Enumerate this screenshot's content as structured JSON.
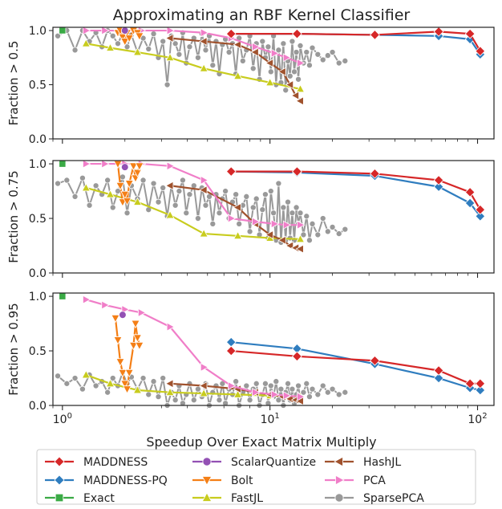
{
  "title": "Approximating an RBF Kernel Classifier",
  "xlabel": "Speedup Over Exact Matrix Multiply",
  "x_tick_labels": [
    "10^0",
    "10^1",
    "10^2"
  ],
  "legend_ncol": 3,
  "colors": {
    "MADDNESS": "#d62728",
    "MADDNESS-PQ": "#2f7dbf",
    "Exact": "#3aaa45",
    "ScalarQuantize": "#9351b4",
    "Bolt": "#f47f16",
    "FastJL": "#c8cc1e",
    "HashJL": "#a0522d",
    "PCA": "#f07ec8",
    "SparsePCA": "#999999"
  },
  "chart_data": [
    {
      "type": "line",
      "ylabel": "Fraction > 0.5",
      "xscale": "log",
      "xlim": [
        0.9,
        120
      ],
      "ylim": [
        0,
        1.03
      ],
      "y_ticks": [
        0.0,
        0.5,
        1.0
      ],
      "y_tick_labels": [
        "0.0",
        "0.5",
        "1.0"
      ],
      "series": [
        {
          "name": "MADDNESS",
          "marker": "diamond",
          "x": [
            6.5,
            13.5,
            32,
            65,
            92,
            103
          ],
          "y": [
            0.97,
            0.97,
            0.96,
            0.99,
            0.97,
            0.81
          ]
        },
        {
          "name": "MADDNESS-PQ",
          "marker": "diamond",
          "x": [
            6.5,
            13.5,
            32,
            65,
            92,
            103
          ],
          "y": [
            0.97,
            0.97,
            0.96,
            0.95,
            0.92,
            0.78
          ]
        },
        {
          "name": "Exact",
          "marker": "square",
          "x": [
            1.0
          ],
          "y": [
            1.0
          ]
        },
        {
          "name": "ScalarQuantize",
          "marker": "circle",
          "x": [
            2.0
          ],
          "y": [
            1.0
          ]
        },
        {
          "name": "Bolt",
          "marker": "triangle-down",
          "x": [
            1.85,
            1.9,
            1.95,
            2.0,
            2.05,
            2.1,
            2.2,
            2.3,
            2.35
          ],
          "y": [
            0.98,
            1.0,
            0.94,
            0.9,
            0.98,
            0.93,
            1.0,
            0.98,
            0.95
          ]
        },
        {
          "name": "FastJL",
          "marker": "triangle-up",
          "x": [
            1.3,
            1.7,
            2.3,
            3.3,
            4.8,
            7,
            10,
            14
          ],
          "y": [
            0.88,
            0.84,
            0.8,
            0.75,
            0.65,
            0.58,
            0.52,
            0.46
          ]
        },
        {
          "name": "HashJL",
          "marker": "triangle-left",
          "x": [
            3.3,
            4.8,
            7,
            8.5,
            10,
            11.5,
            12.5,
            13.3,
            14
          ],
          "y": [
            0.93,
            0.9,
            0.87,
            0.8,
            0.7,
            0.62,
            0.5,
            0.4,
            0.35
          ]
        },
        {
          "name": "PCA",
          "marker": "triangle-right",
          "x": [
            1.3,
            1.6,
            2.0,
            2.4,
            3.3,
            4.8,
            6.5,
            8.5,
            10.5,
            12,
            14
          ],
          "y": [
            1.0,
            1.0,
            1.0,
            1.0,
            1.0,
            0.98,
            0.93,
            0.85,
            0.79,
            0.75,
            0.7
          ]
        },
        {
          "name": "SparsePCA",
          "marker": "circle",
          "x": [
            0.95,
            1.05,
            1.15,
            1.25,
            1.35,
            1.45,
            1.55,
            1.65,
            1.75,
            1.85,
            1.95,
            2.05,
            2.15,
            2.3,
            2.45,
            2.6,
            2.75,
            2.9,
            3.05,
            3.2,
            3.35,
            3.5,
            3.65,
            3.8,
            3.95,
            4.1,
            4.3,
            4.5,
            4.7,
            4.9,
            5.1,
            5.3,
            5.5,
            5.7,
            5.9,
            6.1,
            6.35,
            6.6,
            6.85,
            7.1,
            7.4,
            7.7,
            8.0,
            8.3,
            8.6,
            8.9,
            9.2,
            9.5,
            9.8,
            10.1,
            10.4,
            10.7,
            11.0,
            11.3,
            11.6,
            11.9,
            12.2,
            12.5,
            12.8,
            13.1,
            13.4,
            13.7,
            14.0,
            14.5,
            15.0,
            15.5,
            16.0,
            17.0,
            18.0,
            19.0,
            20.0,
            21.5,
            23.0
          ],
          "y": [
            0.95,
            1.0,
            0.82,
            1.0,
            0.9,
            0.98,
            0.85,
            1.0,
            0.95,
            0.88,
            0.97,
            0.85,
            0.96,
            0.8,
            0.93,
            0.83,
            0.97,
            0.75,
            0.9,
            0.5,
            0.95,
            0.88,
            0.78,
            0.98,
            0.7,
            0.85,
            0.93,
            0.75,
            0.97,
            0.82,
            0.95,
            0.68,
            0.9,
            0.6,
            0.87,
            0.92,
            0.8,
            0.88,
            0.6,
            0.93,
            0.72,
            0.82,
            0.95,
            0.65,
            0.88,
            0.55,
            0.9,
            0.75,
            0.85,
            0.62,
            0.95,
            0.5,
            0.82,
            0.52,
            0.88,
            0.45,
            0.72,
            0.58,
            0.9,
            0.62,
            0.8,
            0.55,
            0.86,
            0.7,
            0.8,
            0.68,
            0.84,
            0.78,
            0.73,
            0.77,
            0.8,
            0.7,
            0.72
          ]
        }
      ]
    },
    {
      "type": "line",
      "ylabel": "Fraction > 0.75",
      "xscale": "log",
      "xlim": [
        0.9,
        120
      ],
      "ylim": [
        0,
        1.03
      ],
      "y_ticks": [
        0.0,
        0.5,
        1.0
      ],
      "y_tick_labels": [
        "0.0",
        "0.5",
        "1.0"
      ],
      "series": [
        {
          "name": "MADDNESS",
          "marker": "diamond",
          "x": [
            6.5,
            13.5,
            32,
            65,
            92,
            103
          ],
          "y": [
            0.93,
            0.93,
            0.91,
            0.85,
            0.74,
            0.58
          ]
        },
        {
          "name": "MADDNESS-PQ",
          "marker": "diamond",
          "x": [
            6.5,
            13.5,
            32,
            65,
            92,
            103
          ],
          "y": [
            0.93,
            0.92,
            0.89,
            0.79,
            0.64,
            0.52
          ]
        },
        {
          "name": "Exact",
          "marker": "square",
          "x": [
            1.0
          ],
          "y": [
            1.0
          ]
        },
        {
          "name": "ScalarQuantize",
          "marker": "circle",
          "x": [
            2.0
          ],
          "y": [
            0.97
          ]
        },
        {
          "name": "Bolt",
          "marker": "triangle-down",
          "x": [
            1.85,
            1.9,
            1.95,
            2.0,
            2.05,
            2.1,
            2.2,
            2.25,
            2.3,
            2.35
          ],
          "y": [
            1.0,
            0.8,
            0.65,
            0.72,
            0.66,
            0.82,
            0.98,
            0.87,
            0.92,
            0.98
          ]
        },
        {
          "name": "FastJL",
          "marker": "triangle-up",
          "x": [
            1.3,
            1.7,
            2.3,
            3.3,
            4.8,
            7,
            10,
            14
          ],
          "y": [
            0.78,
            0.72,
            0.65,
            0.53,
            0.36,
            0.34,
            0.32,
            0.31
          ]
        },
        {
          "name": "HashJL",
          "marker": "triangle-left",
          "x": [
            3.3,
            4.8,
            7,
            8.5,
            10,
            11.5,
            12.5,
            13.3,
            14
          ],
          "y": [
            0.8,
            0.76,
            0.6,
            0.45,
            0.35,
            0.3,
            0.25,
            0.23,
            0.22
          ]
        },
        {
          "name": "PCA",
          "marker": "triangle-right",
          "x": [
            1.3,
            1.6,
            2.0,
            2.4,
            3.3,
            4.8,
            6.5,
            8.5,
            10.5,
            12,
            14
          ],
          "y": [
            1.0,
            1.0,
            1.0,
            1.0,
            0.98,
            0.85,
            0.5,
            0.47,
            0.45,
            0.44,
            0.44
          ]
        },
        {
          "name": "SparsePCA",
          "marker": "circle",
          "x": [
            0.95,
            1.05,
            1.15,
            1.25,
            1.35,
            1.45,
            1.55,
            1.65,
            1.75,
            1.85,
            1.95,
            2.05,
            2.15,
            2.3,
            2.45,
            2.6,
            2.75,
            2.9,
            3.05,
            3.2,
            3.35,
            3.5,
            3.65,
            3.8,
            3.95,
            4.1,
            4.3,
            4.5,
            4.7,
            4.9,
            5.1,
            5.3,
            5.5,
            5.7,
            5.9,
            6.1,
            6.35,
            6.6,
            6.85,
            7.1,
            7.4,
            7.7,
            8.0,
            8.3,
            8.6,
            8.9,
            9.2,
            9.5,
            9.8,
            10.1,
            10.4,
            10.7,
            11.0,
            11.3,
            11.6,
            11.9,
            12.2,
            12.5,
            12.8,
            13.1,
            13.4,
            13.7,
            14.0,
            14.5,
            15.0,
            15.5,
            16.0,
            17.0,
            18.0,
            19.0,
            20.0,
            21.5,
            23.0
          ],
          "y": [
            0.82,
            0.85,
            0.7,
            0.87,
            0.62,
            0.8,
            0.72,
            0.85,
            0.6,
            0.75,
            0.88,
            0.55,
            0.8,
            0.68,
            0.85,
            0.58,
            0.82,
            0.65,
            0.78,
            0.52,
            0.8,
            0.62,
            0.75,
            0.85,
            0.55,
            0.72,
            0.8,
            0.5,
            0.78,
            0.62,
            0.7,
            0.45,
            0.72,
            0.55,
            0.68,
            0.75,
            0.5,
            0.65,
            0.72,
            0.45,
            0.62,
            0.7,
            0.38,
            0.6,
            0.68,
            0.35,
            0.58,
            0.72,
            0.32,
            0.75,
            0.55,
            0.3,
            0.82,
            0.28,
            0.6,
            0.3,
            0.65,
            0.32,
            0.55,
            0.3,
            0.6,
            0.45,
            0.55,
            0.35,
            0.52,
            0.3,
            0.45,
            0.35,
            0.5,
            0.38,
            0.42,
            0.36,
            0.4
          ]
        }
      ]
    },
    {
      "type": "line",
      "ylabel": "Fraction > 0.95",
      "xscale": "log",
      "xlim": [
        0.9,
        120
      ],
      "ylim": [
        0,
        1.03
      ],
      "y_ticks": [
        0.0,
        0.5,
        1.0
      ],
      "y_tick_labels": [
        "0.0",
        "0.5",
        "1.0"
      ],
      "series": [
        {
          "name": "MADDNESS",
          "marker": "diamond",
          "x": [
            6.5,
            13.5,
            32,
            65,
            92,
            103
          ],
          "y": [
            0.5,
            0.45,
            0.41,
            0.32,
            0.2,
            0.2
          ]
        },
        {
          "name": "MADDNESS-PQ",
          "marker": "diamond",
          "x": [
            6.5,
            13.5,
            32,
            65,
            92,
            103
          ],
          "y": [
            0.58,
            0.52,
            0.38,
            0.25,
            0.16,
            0.14
          ]
        },
        {
          "name": "Exact",
          "marker": "square",
          "x": [
            1.0
          ],
          "y": [
            1.0
          ]
        },
        {
          "name": "ScalarQuantize",
          "marker": "circle",
          "x": [
            1.95
          ],
          "y": [
            0.83
          ]
        },
        {
          "name": "Bolt",
          "marker": "triangle-down",
          "x": [
            1.8,
            1.85,
            1.9,
            1.95,
            2.0,
            2.05,
            2.1,
            2.2,
            2.25,
            2.3,
            2.35
          ],
          "y": [
            0.8,
            0.6,
            0.4,
            0.3,
            0.2,
            0.15,
            0.3,
            0.55,
            0.75,
            0.62,
            0.55
          ]
        },
        {
          "name": "FastJL",
          "marker": "triangle-up",
          "x": [
            1.3,
            1.7,
            2.3,
            3.3,
            4.8,
            7,
            10,
            14
          ],
          "y": [
            0.28,
            0.2,
            0.14,
            0.12,
            0.11,
            0.1,
            0.09,
            0.08
          ]
        },
        {
          "name": "HashJL",
          "marker": "triangle-left",
          "x": [
            3.3,
            4.8,
            7,
            8.5,
            10,
            11.5,
            12.5,
            13.3,
            14
          ],
          "y": [
            0.2,
            0.18,
            0.15,
            0.12,
            0.1,
            0.08,
            0.06,
            0.05,
            0.04
          ]
        },
        {
          "name": "PCA",
          "marker": "triangle-right",
          "x": [
            1.3,
            1.6,
            2.0,
            2.4,
            3.3,
            4.8,
            6.5,
            8.5,
            10.5,
            12,
            14
          ],
          "y": [
            0.97,
            0.92,
            0.88,
            0.85,
            0.72,
            0.35,
            0.18,
            0.12,
            0.1,
            0.09,
            0.08
          ]
        },
        {
          "name": "SparsePCA",
          "marker": "circle",
          "x": [
            0.95,
            1.05,
            1.15,
            1.25,
            1.35,
            1.45,
            1.55,
            1.65,
            1.75,
            1.85,
            1.95,
            2.05,
            2.15,
            2.3,
            2.45,
            2.6,
            2.75,
            2.9,
            3.05,
            3.2,
            3.35,
            3.5,
            3.65,
            3.8,
            3.95,
            4.1,
            4.3,
            4.5,
            4.7,
            4.9,
            5.1,
            5.3,
            5.5,
            5.7,
            5.9,
            6.1,
            6.35,
            6.6,
            6.85,
            7.1,
            7.4,
            7.7,
            8.0,
            8.3,
            8.6,
            8.9,
            9.2,
            9.5,
            9.8,
            10.1,
            10.4,
            10.7,
            11.0,
            11.3,
            11.6,
            11.9,
            12.2,
            12.5,
            12.8,
            13.1,
            13.4,
            13.7,
            14.0,
            14.5,
            15.0,
            15.5,
            16.0,
            17.0,
            18.0,
            19.0,
            20.0,
            21.5,
            23.0
          ],
          "y": [
            0.27,
            0.2,
            0.25,
            0.15,
            0.28,
            0.18,
            0.22,
            0.12,
            0.25,
            0.18,
            0.3,
            0.2,
            0.26,
            0.15,
            0.25,
            0.1,
            0.22,
            0.08,
            0.25,
            0.0,
            0.12,
            0.05,
            0.18,
            0.02,
            0.1,
            0.2,
            0.05,
            0.15,
            0.08,
            0.2,
            0.0,
            0.12,
            0.18,
            0.05,
            0.2,
            0.02,
            0.15,
            0.1,
            0.22,
            0.0,
            0.12,
            0.18,
            0.05,
            0.15,
            0.2,
            0.0,
            0.1,
            0.2,
            0.02,
            0.18,
            0.08,
            0.22,
            0.05,
            0.15,
            0.0,
            0.12,
            0.2,
            0.05,
            0.15,
            0.02,
            0.1,
            0.18,
            0.05,
            0.12,
            0.2,
            0.08,
            0.15,
            0.1,
            0.18,
            0.12,
            0.15,
            0.1,
            0.12
          ]
        }
      ]
    }
  ]
}
